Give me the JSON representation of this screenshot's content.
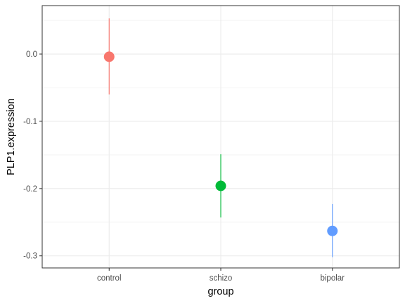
{
  "chart_data": {
    "type": "scatter",
    "title": "",
    "xlabel": "group",
    "ylabel": "PLP1.expression",
    "categories": [
      "control",
      "schizo",
      "bipolar"
    ],
    "points": [
      {
        "category": "control",
        "y": -0.004,
        "ymin": -0.06,
        "ymax": 0.053,
        "color": "#F8766D"
      },
      {
        "category": "schizo",
        "y": -0.196,
        "ymin": -0.243,
        "ymax": -0.149,
        "color": "#00BA38"
      },
      {
        "category": "bipolar",
        "y": -0.263,
        "ymin": -0.302,
        "ymax": -0.223,
        "color": "#619CFF"
      }
    ],
    "yticks": [
      0.0,
      -0.1,
      -0.2,
      -0.3
    ],
    "ytick_labels": [
      "0.0",
      "-0.1",
      "-0.2",
      "-0.3"
    ],
    "ylim": [
      -0.318,
      0.072
    ],
    "grid": true,
    "legend": "none"
  }
}
